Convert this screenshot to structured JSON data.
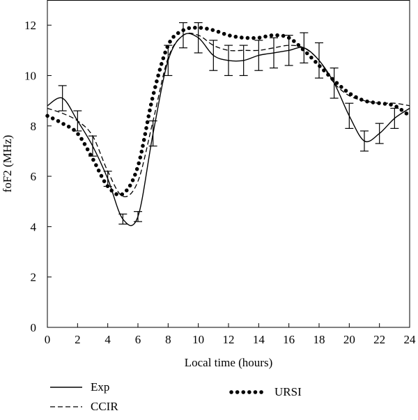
{
  "chart_data": {
    "type": "line",
    "xlabel": "Local time (hours)",
    "ylabel": "foF2 (MHz)",
    "xlim": [
      0,
      24
    ],
    "ylim": [
      0,
      13
    ],
    "xticks": [
      0,
      2,
      4,
      6,
      8,
      10,
      12,
      14,
      16,
      18,
      20,
      22,
      24
    ],
    "yticks": [
      0,
      2,
      4,
      6,
      8,
      10,
      12
    ],
    "grid": false,
    "legend_position": "bottom",
    "series": [
      {
        "name": "Exp",
        "style": "solid",
        "x": [
          0,
          1,
          2,
          3,
          4,
          5,
          6,
          7,
          8,
          9,
          10,
          11,
          12,
          13,
          14,
          15,
          16,
          17,
          18,
          19,
          20,
          21,
          22,
          23,
          24
        ],
        "y": [
          8.8,
          9.1,
          8.2,
          7.2,
          5.9,
          4.3,
          4.4,
          7.7,
          10.6,
          11.6,
          11.5,
          10.8,
          10.6,
          10.6,
          10.8,
          10.9,
          11.0,
          11.1,
          10.6,
          9.7,
          8.4,
          7.4,
          7.7,
          8.3,
          8.7
        ],
        "error": [
          0.4,
          0.5,
          0.4,
          0.4,
          0.3,
          0.2,
          0.2,
          0.5,
          0.6,
          0.5,
          0.6,
          0.6,
          0.6,
          0.6,
          0.6,
          0.6,
          0.6,
          0.6,
          0.7,
          0.6,
          0.5,
          0.4,
          0.4,
          0.4,
          0.5
        ]
      },
      {
        "name": "CCIR",
        "style": "dashed",
        "x": [
          0,
          1,
          2,
          3,
          4,
          5,
          6,
          7,
          8,
          9,
          10,
          11,
          12,
          13,
          14,
          15,
          16,
          17,
          18,
          19,
          20,
          21,
          22,
          23,
          24
        ],
        "y": [
          8.7,
          8.5,
          8.2,
          7.6,
          6.2,
          5.2,
          5.8,
          8.2,
          10.7,
          11.6,
          11.6,
          11.2,
          11.0,
          11.0,
          11.0,
          11.1,
          11.2,
          11.1,
          10.6,
          9.7,
          9.2,
          9.0,
          8.9,
          8.9,
          8.8
        ]
      },
      {
        "name": "URSI",
        "style": "dotted",
        "x": [
          0,
          1,
          2,
          3,
          4,
          5,
          6,
          7,
          8,
          9,
          10,
          11,
          12,
          13,
          14,
          15,
          16,
          17,
          18,
          19,
          20,
          21,
          22,
          23,
          24
        ],
        "y": [
          8.4,
          8.1,
          7.7,
          6.7,
          5.6,
          5.3,
          6.4,
          9.2,
          11.2,
          11.8,
          11.9,
          11.8,
          11.6,
          11.5,
          11.5,
          11.6,
          11.5,
          11.0,
          10.4,
          9.8,
          9.3,
          9.0,
          8.9,
          8.8,
          8.4
        ]
      }
    ]
  }
}
